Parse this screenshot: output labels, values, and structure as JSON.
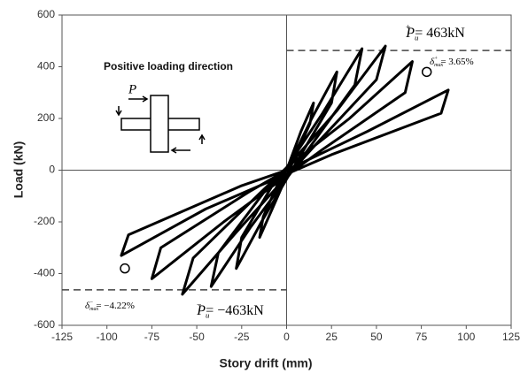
{
  "chart_data": {
    "type": "line",
    "xlabel": "Story drift (mm)",
    "ylabel": "Load (kN)",
    "xlim": [
      -125,
      125
    ],
    "xticks": [
      -125,
      -100,
      -75,
      -50,
      -25,
      0,
      25,
      50,
      75,
      100,
      125
    ],
    "ylim": [
      -600,
      600
    ],
    "yticks": [
      -600,
      -400,
      -200,
      0,
      200,
      400,
      600
    ],
    "series": [
      {
        "color": "#000000",
        "x": [
          0,
          8,
          15,
          13,
          4,
          -8,
          -15,
          -13,
          -4,
          0,
          14,
          28,
          25,
          8,
          -14,
          -28,
          -25,
          -8,
          0,
          20,
          42,
          38,
          12,
          -20,
          -42,
          -38,
          -12,
          0,
          28,
          55,
          50,
          15,
          -28,
          -58,
          -52,
          -15,
          0,
          35,
          70,
          66,
          20,
          -35,
          -75,
          -70,
          -20,
          0,
          45,
          90,
          86,
          25,
          -45,
          -92,
          -88,
          -25,
          0
        ],
        "values": [
          0,
          150,
          260,
          180,
          40,
          -150,
          -260,
          -180,
          -40,
          0,
          200,
          380,
          260,
          60,
          -200,
          -380,
          -260,
          -60,
          10,
          220,
          470,
          330,
          80,
          -220,
          -450,
          -320,
          -80,
          10,
          230,
          480,
          350,
          90,
          -240,
          -480,
          -340,
          -90,
          10,
          200,
          420,
          300,
          80,
          -200,
          -420,
          -300,
          -80,
          0,
          150,
          310,
          220,
          60,
          -150,
          -330,
          -250,
          -60,
          0
        ]
      }
    ],
    "reference_lines": [
      463,
      -463
    ],
    "markers": [
      {
        "x": 78,
        "y": 380
      },
      {
        "x": -90,
        "y": -380
      }
    ],
    "inset_title": "Positive loading direction",
    "inset_force": "P",
    "annotations": [
      {
        "symbol": "P",
        "sub": "u",
        "sup": "+",
        "text": "= 463kN"
      },
      {
        "symbol": "δ",
        "sub": "max",
        "sup": "+",
        "text": "= 3.65%"
      },
      {
        "symbol": "δ",
        "sub": "max",
        "sup": "−",
        "text": "= −4.22%"
      },
      {
        "symbol": "P",
        "sub": "u",
        "sup": "−",
        "text": "= −463kN"
      }
    ]
  }
}
